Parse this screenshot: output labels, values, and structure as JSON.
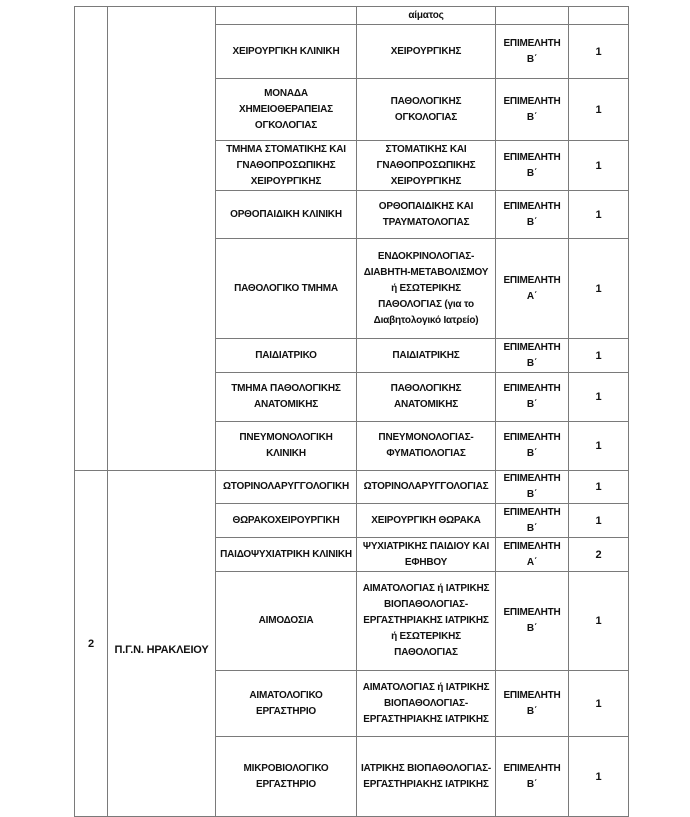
{
  "groups": [
    {
      "number": "",
      "hospital": "",
      "rows": [
        {
          "department": "",
          "specialty": "αίματος",
          "rank": "",
          "positions": ""
        },
        {
          "department": "ΧΕΙΡΟΥΡΓΙΚΗ ΚΛΙΝΙΚΗ",
          "specialty": "ΧΕΙΡΟΥΡΓΙΚΗΣ",
          "rank": "ΕΠΙΜΕΛΗΤΗ Β΄",
          "positions": "1"
        },
        {
          "department": "ΜΟΝΑΔΑ ΧΗΜΕΙΟΘΕΡΑΠΕΙΑΣ ΟΓΚΟΛΟΓΙΑΣ",
          "specialty": "ΠΑΘΟΛΟΓΙΚΗΣ ΟΓΚΟΛΟΓΙΑΣ",
          "rank": "ΕΠΙΜΕΛΗΤΗ Β΄",
          "positions": "1"
        },
        {
          "department": "ΤΜΗΜΑ ΣΤΟΜΑΤΙΚΗΣ ΚΑΙ ΓΝΑΘΟΠΡΟΣΩΠΙΚΗΣ ΧΕΙΡΟΥΡΓΙΚΗΣ",
          "specialty": "ΣΤΟΜΑΤΙΚΗΣ ΚΑΙ ΓΝΑΘΟΠΡΟΣΩΠΙΚΗΣ ΧΕΙΡΟΥΡΓΙΚΗΣ",
          "rank": "ΕΠΙΜΕΛΗΤΗ Β΄",
          "positions": "1"
        },
        {
          "department": "ΟΡΘΟΠΑΙΔΙΚΗ ΚΛΙΝΙΚΗ",
          "specialty": "ΟΡΘΟΠΑΙΔΙΚΗΣ ΚΑΙ ΤΡΑΥΜΑΤΟΛΟΓΙΑΣ",
          "rank": "ΕΠΙΜΕΛΗΤΗ Β΄",
          "positions": "1"
        },
        {
          "department": "ΠΑΘΟΛΟΓΙΚΟ ΤΜΗΜΑ",
          "specialty": "ΕΝΔΟΚΡΙΝΟΛΟΓΙΑΣ-ΔΙΑΒΗΤΗ-ΜΕΤΑΒΟΛΙΣΜΟΥ ή ΕΣΩΤΕΡΙΚΗΣ ΠΑΘΟΛΟΓΙΑΣ (για το Διαβητολογικό Ιατρείο)",
          "rank": "ΕΠΙΜΕΛΗΤΗ Α΄",
          "positions": "1"
        },
        {
          "department": "ΠΑΙΔΙΑΤΡΙΚΟ",
          "specialty": "ΠΑΙΔΙΑΤΡΙΚΗΣ",
          "rank": "ΕΠΙΜΕΛΗΤΗ Β΄",
          "positions": "1"
        },
        {
          "department": "ΤΜΗΜΑ ΠΑΘΟΛΟΓΙΚΗΣ ΑΝΑΤΟΜΙΚΗΣ",
          "specialty": "ΠΑΘΟΛΟΓΙΚΗΣ ΑΝΑΤΟΜΙΚΗΣ",
          "rank": "ΕΠΙΜΕΛΗΤΗ Β΄",
          "positions": "1"
        },
        {
          "department": "ΠΝΕΥΜΟΝΟΛΟΓΙΚΗ ΚΛΙΝΙΚΗ",
          "specialty": "ΠΝΕΥΜΟΝΟΛΟΓΙΑΣ-ΦΥΜΑΤΙΟΛΟΓΙΑΣ",
          "rank": "ΕΠΙΜΕΛΗΤΗ Β΄",
          "positions": "1"
        }
      ]
    },
    {
      "number": "2",
      "hospital": "Π.Γ.Ν. ΗΡΑΚΛΕΙΟΥ",
      "rows": [
        {
          "department": "ΩΤΟΡΙΝΟΛΑΡΥΓΓΟΛΟΓΙΚΗ",
          "specialty": "ΩΤΟΡΙΝΟΛΑΡΥΓΓΟΛΟΓΙΑΣ",
          "rank": "ΕΠΙΜΕΛΗΤΗ Β΄",
          "positions": "1"
        },
        {
          "department": "ΘΩΡΑΚΟΧΕΙΡΟΥΡΓΙΚΗ",
          "specialty": "ΧΕΙΡΟΥΡΓΙΚΗ ΘΩΡΑΚΑ",
          "rank": "ΕΠΙΜΕΛΗΤΗ Β΄",
          "positions": "1"
        },
        {
          "department": "ΠΑΙΔΟΨΥΧΙΑΤΡΙΚΗ ΚΛΙΝΙΚΗ",
          "specialty": "ΨΥΧΙΑΤΡΙΚΗΣ ΠΑΙΔΙΟΥ ΚΑΙ ΕΦΗΒΟΥ",
          "rank": "ΕΠΙΜΕΛΗΤΗ Α΄",
          "positions": "2"
        },
        {
          "department": "ΑΙΜΟΔΟΣΙΑ",
          "specialty": "ΑΙΜΑΤΟΛΟΓΙΑΣ ή ΙΑΤΡΙΚΗΣ ΒΙΟΠΑΘΟΛΟΓΙΑΣ-ΕΡΓΑΣΤΗΡΙΑΚΗΣ ΙΑΤΡΙΚΗΣ ή ΕΣΩΤΕΡΙΚΗΣ ΠΑΘΟΛΟΓΙΑΣ",
          "rank": "ΕΠΙΜΕΛΗΤΗ Β΄",
          "positions": "1"
        },
        {
          "department": "ΑΙΜΑΤΟΛΟΓΙΚΟ ΕΡΓΑΣΤΗΡΙΟ",
          "specialty": "ΑΙΜΑΤΟΛΟΓΙΑΣ ή ΙΑΤΡΙΚΗΣ ΒΙΟΠΑΘΟΛΟΓΙΑΣ-ΕΡΓΑΣΤΗΡΙΑΚΗΣ ΙΑΤΡΙΚΗΣ",
          "rank": "ΕΠΙΜΕΛΗΤΗ Β΄",
          "positions": "1"
        },
        {
          "department": "ΜΙΚΡΟΒΙΟΛΟΓΙΚΟ ΕΡΓΑΣΤΗΡΙΟ",
          "specialty": "ΙΑΤΡΙΚΗΣ ΒΙΟΠΑΘΟΛΟΓΙΑΣ-ΕΡΓΑΣΤΗΡΙΑΚΗΣ ΙΑΤΡΙΚΗΣ",
          "rank": "ΕΠΙΜΕΛΗΤΗ Β΄",
          "positions": "1"
        }
      ]
    }
  ]
}
